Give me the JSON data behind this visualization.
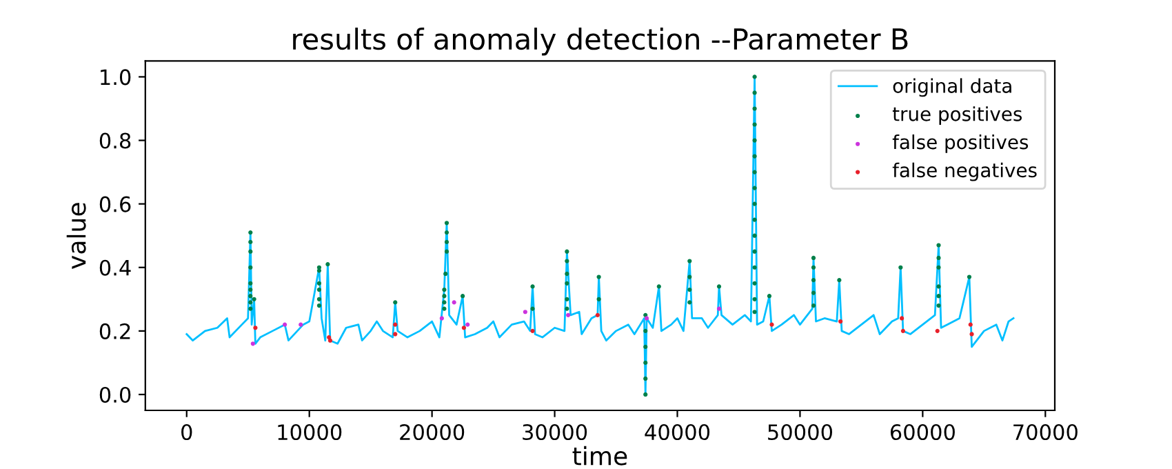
{
  "chart_data": {
    "type": "line",
    "title": "results of anomaly detection --Parameter B",
    "xlabel": "time",
    "ylabel": "value",
    "xlim": [
      -3370,
      70770
    ],
    "ylim": [
      -0.05,
      1.05
    ],
    "xticks": [
      0,
      10000,
      20000,
      30000,
      40000,
      50000,
      60000,
      70000
    ],
    "yticks": [
      {
        "value": 0,
        "label": "0.0"
      },
      {
        "value": 0.2,
        "label": "0.2"
      },
      {
        "value": 0.4,
        "label": "0.4"
      },
      {
        "value": 0.6,
        "label": "0.6"
      },
      {
        "value": 0.8,
        "label": "0.8"
      },
      {
        "value": 1,
        "label": "1.0"
      }
    ],
    "grid": false,
    "legend": "top right",
    "series": [
      {
        "name": "original data",
        "color": "#00bfff",
        "x": [
          0,
          500,
          1500,
          2500,
          3300,
          3500,
          4500,
          5000,
          5200,
          5300,
          5500,
          5600,
          6000,
          7000,
          8000,
          8300,
          9500,
          10000,
          10800,
          11000,
          11300,
          11500,
          11700,
          12300,
          13000,
          14000,
          14300,
          15000,
          15500,
          16000,
          16800,
          17000,
          17200,
          18000,
          19000,
          20000,
          20600,
          21000,
          21200,
          21400,
          22000,
          22500,
          22700,
          23500,
          24500,
          25000,
          25500,
          26500,
          27500,
          28000,
          28200,
          28400,
          29000,
          30000,
          30800,
          31000,
          31300,
          32000,
          32200,
          33000,
          33500,
          33600,
          33800,
          34200,
          35000,
          36000,
          36500,
          37300,
          37400,
          37500,
          38000,
          38500,
          38700,
          39500,
          40000,
          40500,
          41000,
          41200,
          42000,
          42500,
          43300,
          43400,
          43600,
          44500,
          45500,
          46000,
          46300,
          46500,
          47000,
          47500,
          47700,
          48500,
          49500,
          50000,
          51000,
          51100,
          51300,
          52000,
          53000,
          53200,
          53400,
          54000,
          55000,
          56000,
          56500,
          57500,
          58000,
          58200,
          58400,
          59000,
          60000,
          61000,
          61300,
          61500,
          62000,
          63000,
          63800,
          64000,
          65000,
          66000,
          66500,
          67000,
          67400
        ],
        "values": [
          0.19,
          0.17,
          0.2,
          0.21,
          0.24,
          0.18,
          0.22,
          0.24,
          0.51,
          0.22,
          0.3,
          0.16,
          0.18,
          0.2,
          0.22,
          0.17,
          0.22,
          0.23,
          0.4,
          0.24,
          0.17,
          0.41,
          0.17,
          0.16,
          0.21,
          0.22,
          0.17,
          0.2,
          0.23,
          0.2,
          0.18,
          0.29,
          0.2,
          0.18,
          0.2,
          0.23,
          0.18,
          0.33,
          0.54,
          0.25,
          0.22,
          0.31,
          0.18,
          0.19,
          0.21,
          0.23,
          0.18,
          0.22,
          0.23,
          0.2,
          0.34,
          0.19,
          0.18,
          0.21,
          0.2,
          0.45,
          0.25,
          0.26,
          0.19,
          0.24,
          0.25,
          0.37,
          0.2,
          0.17,
          0.2,
          0.22,
          0.19,
          0.24,
          0.0,
          0.24,
          0.21,
          0.34,
          0.2,
          0.22,
          0.24,
          0.2,
          0.42,
          0.24,
          0.24,
          0.21,
          0.25,
          0.34,
          0.25,
          0.22,
          0.25,
          0.23,
          1.0,
          0.22,
          0.23,
          0.31,
          0.2,
          0.22,
          0.25,
          0.22,
          0.27,
          0.43,
          0.23,
          0.24,
          0.23,
          0.36,
          0.2,
          0.19,
          0.22,
          0.25,
          0.19,
          0.23,
          0.24,
          0.4,
          0.2,
          0.19,
          0.22,
          0.25,
          0.47,
          0.21,
          0.22,
          0.24,
          0.37,
          0.15,
          0.2,
          0.22,
          0.17,
          0.23,
          0.24
        ]
      },
      {
        "name": "true positives",
        "type": "scatter",
        "marker": "circle",
        "color": "#00804a",
        "x": [
          5200,
          5200,
          5200,
          5200,
          5200,
          5200,
          5200,
          5200,
          5200,
          5500,
          10800,
          10800,
          10800,
          10800,
          10800,
          10800,
          11500,
          17000,
          21200,
          21200,
          21200,
          21200,
          21100,
          21000,
          21000,
          21000,
          21000,
          22500,
          28200,
          28200,
          31000,
          31000,
          31000,
          31000,
          31000,
          31000,
          33600,
          33600,
          37400,
          37400,
          37400,
          37400,
          37400,
          37400,
          38500,
          41000,
          41000,
          41000,
          41000,
          43400,
          46300,
          46300,
          46300,
          46300,
          46300,
          46300,
          46300,
          46300,
          46300,
          46300,
          46300,
          46300,
          46300,
          46300,
          46300,
          46300,
          47500,
          51100,
          51100,
          51100,
          51100,
          51100,
          53200,
          58200,
          61300,
          61300,
          61300,
          61300,
          61300,
          61300,
          63800
        ],
        "values": [
          0.51,
          0.48,
          0.45,
          0.4,
          0.35,
          0.33,
          0.31,
          0.29,
          0.27,
          0.3,
          0.4,
          0.39,
          0.35,
          0.33,
          0.3,
          0.28,
          0.41,
          0.29,
          0.54,
          0.51,
          0.48,
          0.45,
          0.38,
          0.33,
          0.31,
          0.29,
          0.27,
          0.31,
          0.34,
          0.27,
          0.45,
          0.42,
          0.38,
          0.35,
          0.3,
          0.27,
          0.37,
          0.3,
          0.25,
          0.2,
          0.15,
          0.1,
          0.05,
          0.0,
          0.34,
          0.42,
          0.37,
          0.33,
          0.29,
          0.34,
          1.0,
          0.95,
          0.9,
          0.85,
          0.8,
          0.75,
          0.7,
          0.65,
          0.6,
          0.55,
          0.5,
          0.45,
          0.4,
          0.35,
          0.3,
          0.26,
          0.31,
          0.43,
          0.4,
          0.36,
          0.32,
          0.28,
          0.36,
          0.4,
          0.47,
          0.43,
          0.4,
          0.34,
          0.31,
          0.28,
          0.37
        ]
      },
      {
        "name": "false positives",
        "type": "scatter",
        "marker": "circle",
        "color": "#cc33dd",
        "x": [
          5400,
          8000,
          9300,
          20800,
          21800,
          22900,
          27600,
          31100,
          37500,
          43400
        ],
        "values": [
          0.16,
          0.22,
          0.22,
          0.24,
          0.29,
          0.22,
          0.26,
          0.25,
          0.24,
          0.27
        ]
      },
      {
        "name": "false negatives",
        "type": "scatter",
        "marker": "circle",
        "color": "#e8202a",
        "x": [
          5600,
          11600,
          11700,
          17000,
          17000,
          22600,
          28200,
          33500,
          47700,
          53300,
          58300,
          58400,
          61200,
          63900,
          64000
        ],
        "values": [
          0.21,
          0.18,
          0.17,
          0.22,
          0.19,
          0.21,
          0.2,
          0.25,
          0.22,
          0.23,
          0.24,
          0.2,
          0.2,
          0.22,
          0.19
        ]
      }
    ]
  }
}
